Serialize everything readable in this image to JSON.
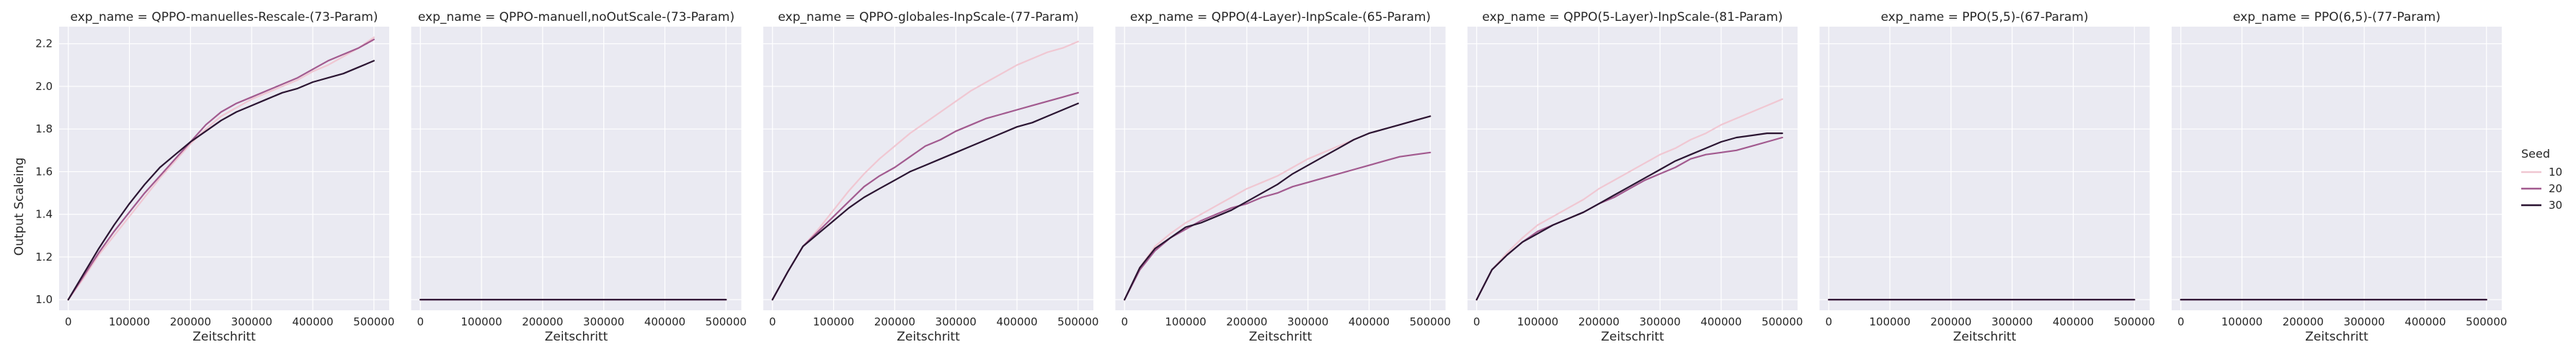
{
  "chart_data": {
    "type": "line",
    "ylabel": "Output Scaleing",
    "xlabel": "Zeitschritt",
    "xlim": [
      -15000,
      525000
    ],
    "ylim": [
      0.95,
      2.28
    ],
    "x_ticks": [
      0,
      100000,
      200000,
      300000,
      400000,
      500000
    ],
    "y_ticks": [
      1.0,
      1.2,
      1.4,
      1.6,
      1.8,
      2.0,
      2.2
    ],
    "y_tick_labels": [
      "1.0",
      "1.2",
      "1.4",
      "1.6",
      "1.8",
      "2.0",
      "2.2"
    ],
    "grid": true,
    "legend": {
      "title": "Seed",
      "placement": "right",
      "entries": [
        {
          "label": "10",
          "color": "#f0c7d2"
        },
        {
          "label": "20",
          "color": "#a25a8f"
        },
        {
          "label": "30",
          "color": "#2b1532"
        }
      ]
    },
    "x": [
      0,
      25000,
      50000,
      75000,
      100000,
      125000,
      150000,
      175000,
      200000,
      225000,
      250000,
      275000,
      300000,
      325000,
      350000,
      375000,
      400000,
      425000,
      450000,
      475000,
      500000
    ],
    "panels": [
      {
        "title": "exp_name = QPPO-manuelles-Rescale-(73-Param)",
        "series": [
          {
            "seed": "10",
            "values": [
              1.0,
              1.1,
              1.21,
              1.3,
              1.39,
              1.48,
              1.57,
              1.65,
              1.73,
              1.8,
              1.86,
              1.9,
              1.94,
              1.97,
              2.0,
              2.03,
              2.07,
              2.1,
              2.14,
              2.18,
              2.23
            ]
          },
          {
            "seed": "20",
            "values": [
              1.0,
              1.11,
              1.22,
              1.32,
              1.41,
              1.5,
              1.58,
              1.66,
              1.74,
              1.82,
              1.88,
              1.92,
              1.95,
              1.98,
              2.01,
              2.04,
              2.08,
              2.12,
              2.15,
              2.18,
              2.22
            ]
          },
          {
            "seed": "30",
            "values": [
              1.0,
              1.12,
              1.24,
              1.35,
              1.45,
              1.54,
              1.62,
              1.68,
              1.74,
              1.79,
              1.84,
              1.88,
              1.91,
              1.94,
              1.97,
              1.99,
              2.02,
              2.04,
              2.06,
              2.09,
              2.12
            ]
          }
        ]
      },
      {
        "title": "exp_name = QPPO-manuell,noOutScale-(73-Param)",
        "series": [
          {
            "seed": "10",
            "values": [
              1.0,
              1.0,
              1.0,
              1.0,
              1.0,
              1.0,
              1.0,
              1.0,
              1.0,
              1.0,
              1.0,
              1.0,
              1.0,
              1.0,
              1.0,
              1.0,
              1.0,
              1.0,
              1.0,
              1.0,
              1.0
            ]
          },
          {
            "seed": "20",
            "values": [
              1.0,
              1.0,
              1.0,
              1.0,
              1.0,
              1.0,
              1.0,
              1.0,
              1.0,
              1.0,
              1.0,
              1.0,
              1.0,
              1.0,
              1.0,
              1.0,
              1.0,
              1.0,
              1.0,
              1.0,
              1.0
            ]
          },
          {
            "seed": "30",
            "values": [
              1.0,
              1.0,
              1.0,
              1.0,
              1.0,
              1.0,
              1.0,
              1.0,
              1.0,
              1.0,
              1.0,
              1.0,
              1.0,
              1.0,
              1.0,
              1.0,
              1.0,
              1.0,
              1.0,
              1.0,
              1.0
            ]
          }
        ]
      },
      {
        "title": "exp_name = QPPO-globales-InpScale-(77-Param)",
        "series": [
          {
            "seed": "10",
            "values": [
              1.0,
              1.13,
              1.25,
              1.33,
              1.42,
              1.51,
              1.59,
              1.66,
              1.72,
              1.78,
              1.83,
              1.88,
              1.93,
              1.98,
              2.02,
              2.06,
              2.1,
              2.13,
              2.16,
              2.18,
              2.21
            ]
          },
          {
            "seed": "20",
            "values": [
              1.0,
              1.13,
              1.25,
              1.32,
              1.39,
              1.46,
              1.53,
              1.58,
              1.62,
              1.67,
              1.72,
              1.75,
              1.79,
              1.82,
              1.85,
              1.87,
              1.89,
              1.91,
              1.93,
              1.95,
              1.97
            ]
          },
          {
            "seed": "30",
            "values": [
              1.0,
              1.13,
              1.25,
              1.31,
              1.37,
              1.43,
              1.48,
              1.52,
              1.56,
              1.6,
              1.63,
              1.66,
              1.69,
              1.72,
              1.75,
              1.78,
              1.81,
              1.83,
              1.86,
              1.89,
              1.92
            ]
          }
        ]
      },
      {
        "title": "exp_name = QPPO(4-Layer)-InpScale-(65-Param)",
        "series": [
          {
            "seed": "10",
            "values": [
              1.0,
              1.15,
              1.25,
              1.31,
              1.36,
              1.4,
              1.44,
              1.48,
              1.52,
              1.55,
              1.58,
              1.62,
              1.66,
              1.69,
              1.72,
              1.75,
              1.78,
              1.8,
              1.82,
              1.84,
              1.86
            ]
          },
          {
            "seed": "20",
            "values": [
              1.0,
              1.14,
              1.23,
              1.29,
              1.33,
              1.37,
              1.4,
              1.43,
              1.45,
              1.48,
              1.5,
              1.53,
              1.55,
              1.57,
              1.59,
              1.61,
              1.63,
              1.65,
              1.67,
              1.68,
              1.69
            ]
          },
          {
            "seed": "30",
            "values": [
              1.0,
              1.15,
              1.24,
              1.29,
              1.34,
              1.36,
              1.39,
              1.42,
              1.46,
              1.5,
              1.54,
              1.59,
              1.63,
              1.67,
              1.71,
              1.75,
              1.78,
              1.8,
              1.82,
              1.84,
              1.86
            ]
          }
        ]
      },
      {
        "title": "exp_name = QPPO(5-Layer)-InpScale-(81-Param)",
        "series": [
          {
            "seed": "10",
            "values": [
              1.0,
              1.14,
              1.22,
              1.29,
              1.35,
              1.39,
              1.43,
              1.47,
              1.52,
              1.56,
              1.6,
              1.64,
              1.68,
              1.71,
              1.75,
              1.78,
              1.82,
              1.85,
              1.88,
              1.91,
              1.94
            ]
          },
          {
            "seed": "20",
            "values": [
              1.0,
              1.14,
              1.21,
              1.27,
              1.32,
              1.35,
              1.38,
              1.41,
              1.45,
              1.48,
              1.52,
              1.56,
              1.59,
              1.62,
              1.66,
              1.68,
              1.69,
              1.7,
              1.72,
              1.74,
              1.76
            ]
          },
          {
            "seed": "30",
            "values": [
              1.0,
              1.14,
              1.21,
              1.27,
              1.31,
              1.35,
              1.38,
              1.41,
              1.45,
              1.49,
              1.53,
              1.57,
              1.61,
              1.65,
              1.68,
              1.71,
              1.74,
              1.76,
              1.77,
              1.78,
              1.78
            ]
          }
        ]
      },
      {
        "title": "exp_name = PPO(5,5)-(67-Param)",
        "series": [
          {
            "seed": "10",
            "values": [
              1.0,
              1.0,
              1.0,
              1.0,
              1.0,
              1.0,
              1.0,
              1.0,
              1.0,
              1.0,
              1.0,
              1.0,
              1.0,
              1.0,
              1.0,
              1.0,
              1.0,
              1.0,
              1.0,
              1.0,
              1.0
            ]
          },
          {
            "seed": "20",
            "values": [
              1.0,
              1.0,
              1.0,
              1.0,
              1.0,
              1.0,
              1.0,
              1.0,
              1.0,
              1.0,
              1.0,
              1.0,
              1.0,
              1.0,
              1.0,
              1.0,
              1.0,
              1.0,
              1.0,
              1.0,
              1.0
            ]
          },
          {
            "seed": "30",
            "values": [
              1.0,
              1.0,
              1.0,
              1.0,
              1.0,
              1.0,
              1.0,
              1.0,
              1.0,
              1.0,
              1.0,
              1.0,
              1.0,
              1.0,
              1.0,
              1.0,
              1.0,
              1.0,
              1.0,
              1.0,
              1.0
            ]
          }
        ]
      },
      {
        "title": "exp_name = PPO(6,5)-(77-Param)",
        "series": [
          {
            "seed": "10",
            "values": [
              1.0,
              1.0,
              1.0,
              1.0,
              1.0,
              1.0,
              1.0,
              1.0,
              1.0,
              1.0,
              1.0,
              1.0,
              1.0,
              1.0,
              1.0,
              1.0,
              1.0,
              1.0,
              1.0,
              1.0,
              1.0
            ]
          },
          {
            "seed": "20",
            "values": [
              1.0,
              1.0,
              1.0,
              1.0,
              1.0,
              1.0,
              1.0,
              1.0,
              1.0,
              1.0,
              1.0,
              1.0,
              1.0,
              1.0,
              1.0,
              1.0,
              1.0,
              1.0,
              1.0,
              1.0,
              1.0
            ]
          },
          {
            "seed": "30",
            "values": [
              1.0,
              1.0,
              1.0,
              1.0,
              1.0,
              1.0,
              1.0,
              1.0,
              1.0,
              1.0,
              1.0,
              1.0,
              1.0,
              1.0,
              1.0,
              1.0,
              1.0,
              1.0,
              1.0,
              1.0,
              1.0
            ]
          }
        ]
      }
    ]
  },
  "style": {
    "axes_background": "#eaeaf2",
    "grid_color": "#ffffff"
  }
}
